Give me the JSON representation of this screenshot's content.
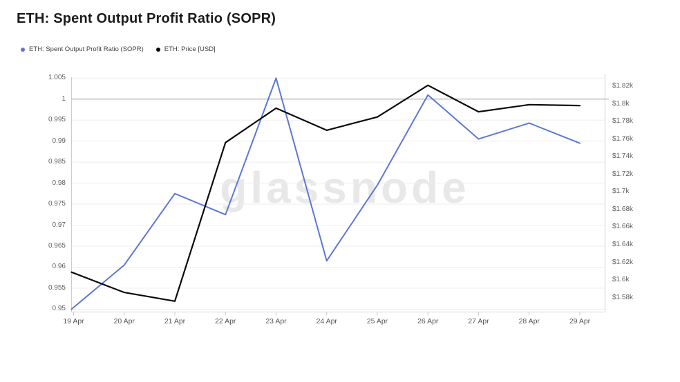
{
  "page": {
    "title": "ETH: Spent Output Profit Ratio (SOPR)"
  },
  "legend": {
    "items": [
      {
        "label": "ETH: Spent Output Profit Ratio (SOPR)",
        "color": "#5b76d8"
      },
      {
        "label": "ETH: Price [USD]",
        "color": "#0a0a0a"
      }
    ]
  },
  "watermark": "glassnode",
  "chart_data": {
    "type": "line",
    "title": "ETH: Spent Output Profit Ratio (SOPR)",
    "x": [
      "19 Apr",
      "20 Apr",
      "21 Apr",
      "22 Apr",
      "23 Apr",
      "24 Apr",
      "25 Apr",
      "26 Apr",
      "27 Apr",
      "28 Apr",
      "29 Apr"
    ],
    "series": [
      {
        "name": "ETH: Spent Output Profit Ratio (SOPR)",
        "axis": "left",
        "color": "#5b76d8",
        "values": [
          0.95,
          0.9605,
          0.9775,
          0.9725,
          1.005,
          0.9615,
          0.9795,
          1.001,
          0.9905,
          0.9943,
          0.9895
        ]
      },
      {
        "name": "ETH: Price [USD]",
        "axis": "right",
        "color": "#0a0a0a",
        "values": [
          1609,
          1586,
          1576,
          1756,
          1795,
          1770,
          1785,
          1821,
          1791,
          1799,
          1798
        ]
      }
    ],
    "left_axis": {
      "min": 0.95,
      "max": 1.005,
      "step": 0.005,
      "baseline_value": 1,
      "labels": [
        "1.005",
        "1",
        "0.995",
        "0.99",
        "0.985",
        "0.98",
        "0.975",
        "0.97",
        "0.965",
        "0.96",
        "0.955",
        "0.95"
      ]
    },
    "right_axis": {
      "min": 1580,
      "max": 1820,
      "step": 20,
      "labels": [
        "$1.82k",
        "$1.8k",
        "$1.78k",
        "$1.76k",
        "$1.74k",
        "$1.72k",
        "$1.7k",
        "$1.68k",
        "$1.66k",
        "$1.64k",
        "$1.62k",
        "$1.6k",
        "$1.58k"
      ]
    },
    "grid": true,
    "legend_position": "top-left"
  }
}
